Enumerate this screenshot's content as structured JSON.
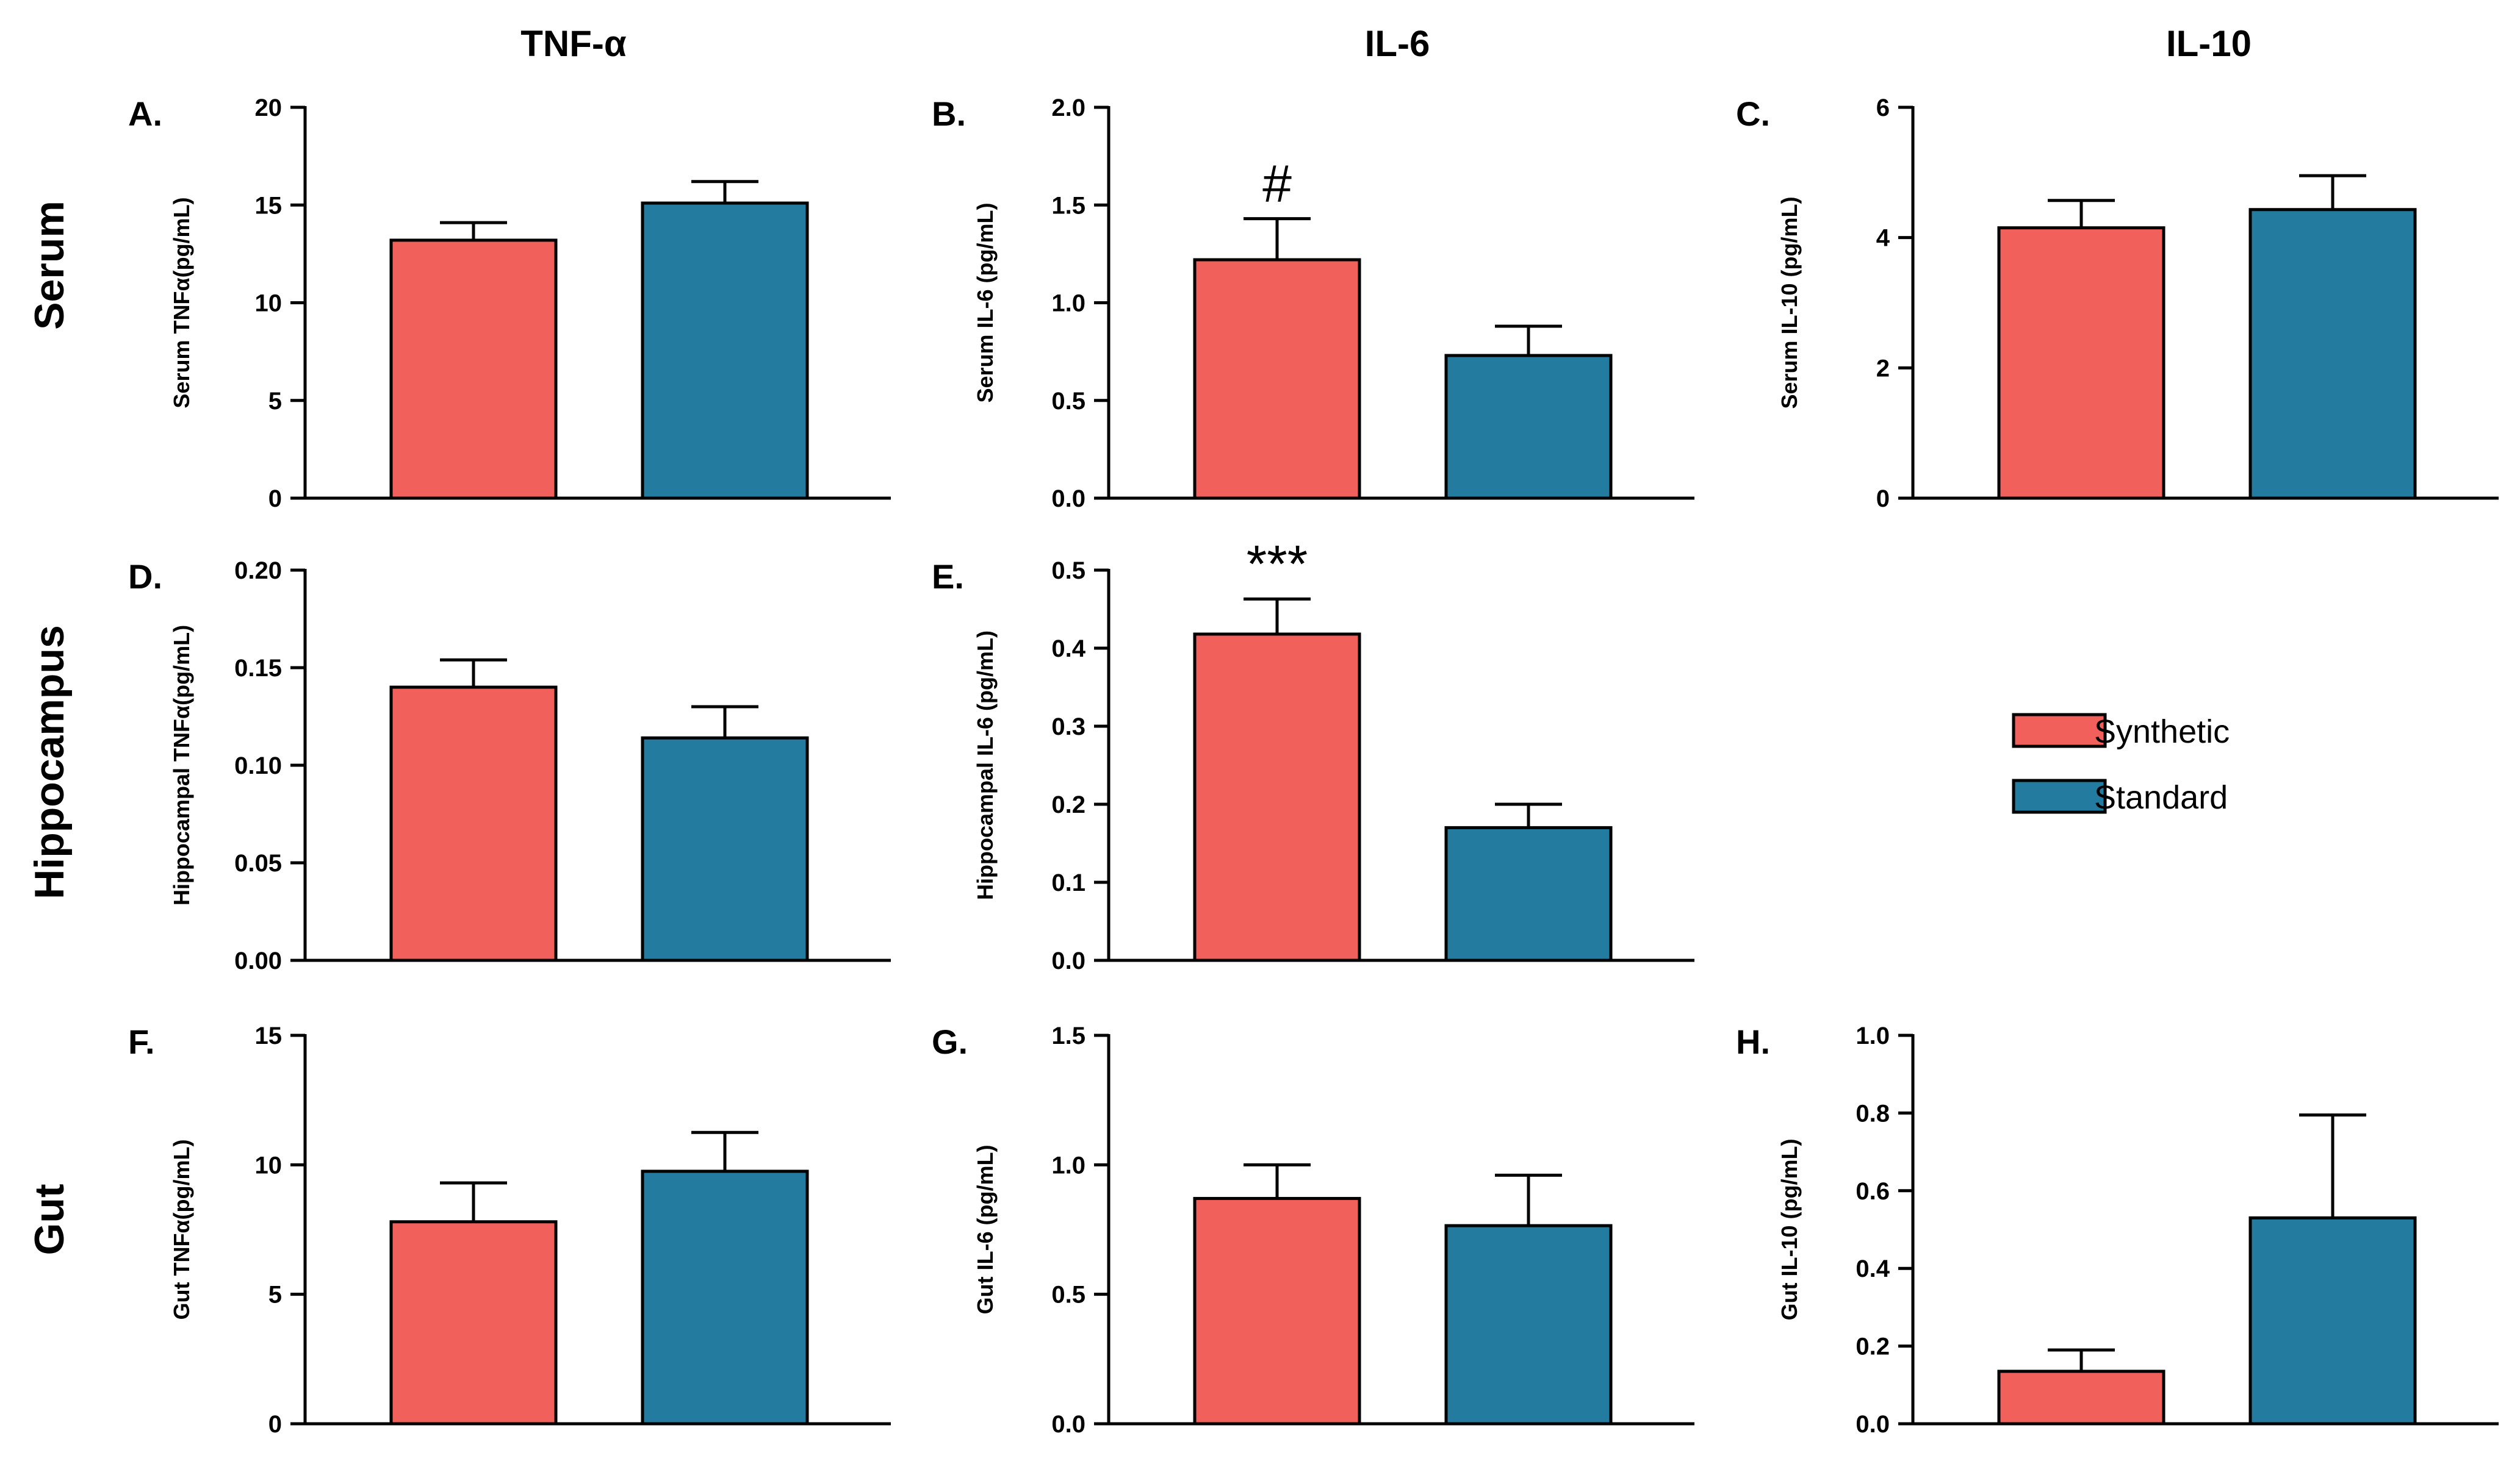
{
  "column_titles": [
    "TNF-α",
    "IL-6",
    "IL-10"
  ],
  "row_titles": [
    "Serum",
    "Hippocampus",
    "Gut"
  ],
  "legend": [
    {
      "label": "Synthetic",
      "color": "#f2605c"
    },
    {
      "label": "Standard",
      "color": "#247ba0"
    }
  ],
  "chart_data": [
    {
      "type": "bar",
      "id": "A",
      "letter": "A.",
      "row": "Serum",
      "column": "TNF-α",
      "ylabel": "Serum TNFα(pg/mL)",
      "ylim": [
        0,
        20
      ],
      "yticks": [
        0,
        5,
        10,
        15,
        20
      ],
      "tick_decimals": 0,
      "categories": [
        "Synthetic",
        "Standard"
      ],
      "values": [
        13.2,
        15.1
      ],
      "errors": [
        0.9,
        1.1
      ],
      "annotations": []
    },
    {
      "type": "bar",
      "id": "B",
      "letter": "B.",
      "row": "Serum",
      "column": "IL-6",
      "ylabel": "Serum IL-6 (pg/mL)",
      "ylim": [
        0,
        2
      ],
      "yticks": [
        0,
        0.5,
        1,
        1.5,
        2
      ],
      "tick_decimals": 1,
      "categories": [
        "Synthetic",
        "Standard"
      ],
      "values": [
        1.22,
        0.73
      ],
      "errors": [
        0.21,
        0.15
      ],
      "annotations": [
        {
          "text": "#",
          "bar": 0
        }
      ]
    },
    {
      "type": "bar",
      "id": "C",
      "letter": "C.",
      "row": "Serum",
      "column": "IL-10",
      "ylabel": "Serum IL-10 (pg/mL)",
      "ylim": [
        0,
        6
      ],
      "yticks": [
        0,
        2,
        4,
        6
      ],
      "tick_decimals": 0,
      "categories": [
        "Synthetic",
        "Standard"
      ],
      "values": [
        4.15,
        4.43
      ],
      "errors": [
        0.42,
        0.52
      ],
      "annotations": []
    },
    {
      "type": "bar",
      "id": "D",
      "letter": "D.",
      "row": "Hippocampus",
      "column": "TNF-α",
      "ylabel": "Hippocampal TNFα(pg/mL)",
      "ylim": [
        0,
        0.2
      ],
      "yticks": [
        0,
        0.05,
        0.1,
        0.15,
        0.2
      ],
      "tick_decimals": 2,
      "categories": [
        "Synthetic",
        "Standard"
      ],
      "values": [
        0.14,
        0.114
      ],
      "errors": [
        0.014,
        0.016
      ],
      "annotations": []
    },
    {
      "type": "bar",
      "id": "E",
      "letter": "E.",
      "row": "Hippocampus",
      "column": "IL-6",
      "ylabel": "Hippocampal IL-6 (pg/mL)",
      "ylim": [
        0,
        0.5
      ],
      "yticks": [
        0,
        0.1,
        0.2,
        0.3,
        0.4,
        0.5
      ],
      "tick_decimals": 1,
      "categories": [
        "Synthetic",
        "Standard"
      ],
      "values": [
        0.418,
        0.17
      ],
      "errors": [
        0.045,
        0.03
      ],
      "annotations": [
        {
          "text": "***",
          "bar": 0
        }
      ]
    },
    {
      "type": "bar",
      "id": "F",
      "letter": "F.",
      "row": "Gut",
      "column": "TNF-α",
      "ylabel": "Gut TNFα(pg/mL)",
      "ylim": [
        0,
        15
      ],
      "yticks": [
        0,
        5,
        10,
        15
      ],
      "tick_decimals": 0,
      "categories": [
        "Synthetic",
        "Standard"
      ],
      "values": [
        7.8,
        9.75
      ],
      "errors": [
        1.5,
        1.5
      ],
      "annotations": []
    },
    {
      "type": "bar",
      "id": "G",
      "letter": "G.",
      "row": "Gut",
      "column": "IL-6",
      "ylabel": "Gut IL-6 (pg/mL)",
      "ylim": [
        0,
        1.5
      ],
      "yticks": [
        0,
        0.5,
        1,
        1.5
      ],
      "tick_decimals": 1,
      "categories": [
        "Synthetic",
        "Standard"
      ],
      "values": [
        0.87,
        0.765
      ],
      "errors": [
        0.13,
        0.195
      ],
      "annotations": []
    },
    {
      "type": "bar",
      "id": "H",
      "letter": "H.",
      "row": "Gut",
      "column": "IL-10",
      "ylabel": "Gut IL-10 (pg/mL)",
      "ylim": [
        0,
        1
      ],
      "yticks": [
        0,
        0.2,
        0.4,
        0.6,
        0.8,
        1
      ],
      "tick_decimals": 1,
      "categories": [
        "Synthetic",
        "Standard"
      ],
      "values": [
        0.135,
        0.53
      ],
      "errors": [
        0.055,
        0.265
      ],
      "annotations": []
    }
  ]
}
